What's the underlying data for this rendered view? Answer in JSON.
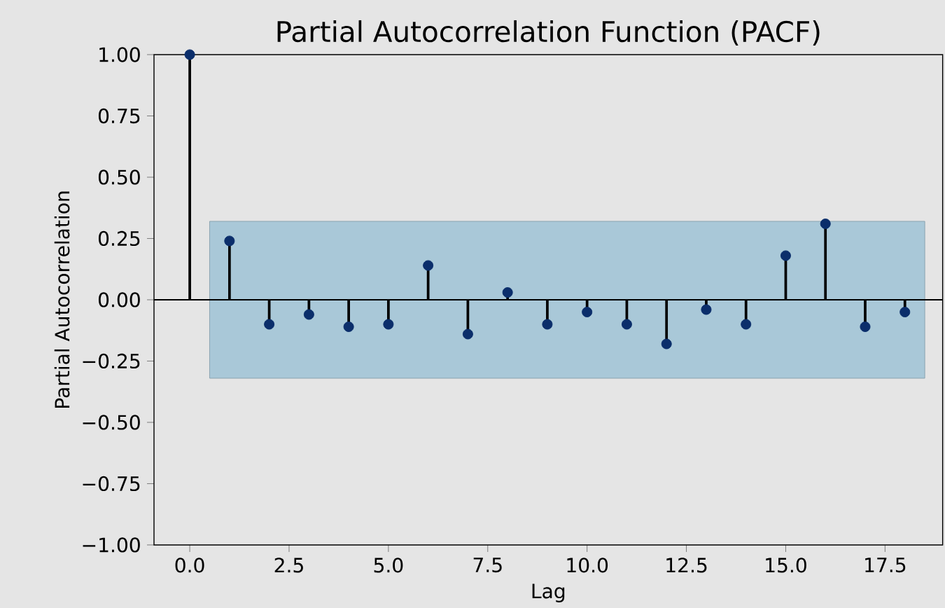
{
  "chart_data": {
    "type": "lollipop",
    "title": "Partial Autocorrelation Function (PACF)",
    "xlabel": "Lag",
    "ylabel": "Partial Autocorrelation",
    "x": [
      0,
      1,
      2,
      3,
      4,
      5,
      6,
      7,
      8,
      9,
      10,
      11,
      12,
      13,
      14,
      15,
      16,
      17,
      18
    ],
    "values": [
      1.0,
      0.24,
      -0.1,
      -0.06,
      -0.11,
      -0.1,
      0.14,
      -0.14,
      0.03,
      -0.1,
      -0.05,
      -0.1,
      -0.18,
      -0.04,
      -0.1,
      0.18,
      0.31,
      -0.11,
      -0.05
    ],
    "color": "#0b2e6b",
    "marker": "circle",
    "xlim": [
      -0.9,
      18.95
    ],
    "xticks": [
      {
        "value": 0,
        "label": "0.0"
      },
      {
        "value": 2.5,
        "label": "2.5"
      },
      {
        "value": 5,
        "label": "5.0"
      },
      {
        "value": 7.5,
        "label": "7.5"
      },
      {
        "value": 10,
        "label": "10.0"
      },
      {
        "value": 12.5,
        "label": "12.5"
      },
      {
        "value": 15,
        "label": "15.0"
      },
      {
        "value": 17.5,
        "label": "17.5"
      }
    ],
    "ylim": [
      -1,
      1
    ],
    "yticks": [
      {
        "value": -1,
        "label": "−1.00"
      },
      {
        "value": -0.75,
        "label": "−0.75"
      },
      {
        "value": -0.5,
        "label": "−0.50"
      },
      {
        "value": -0.25,
        "label": "−0.25"
      },
      {
        "value": 0,
        "label": "0.00"
      },
      {
        "value": 0.25,
        "label": "0.25"
      },
      {
        "value": 0.5,
        "label": "0.50"
      },
      {
        "value": 0.75,
        "label": "0.75"
      },
      {
        "value": 1,
        "label": "1.00"
      }
    ],
    "ref_lines": [
      {
        "axis": "y",
        "value": 0
      }
    ],
    "bands": [
      {
        "axis": "y",
        "from": -0.32,
        "to": 0.32,
        "color": "#a9c8d8"
      }
    ],
    "grid": false
  }
}
